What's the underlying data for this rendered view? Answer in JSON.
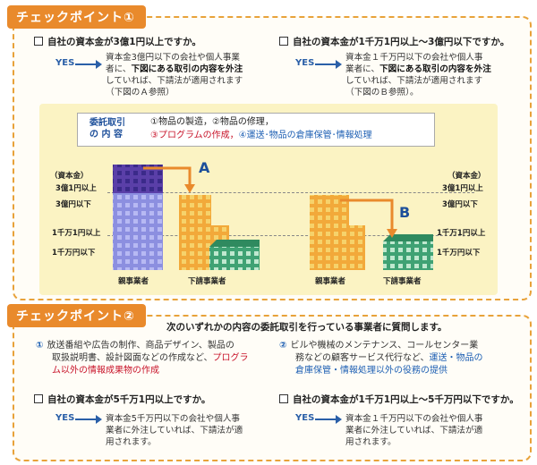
{
  "cp1": {
    "tab": "チェックポイント①",
    "left_q": "自社の資本金が3億1円以上ですか。",
    "left_yes": "YES",
    "left_a1": "資本金3億円以下の会社や個人事業",
    "left_a2": "者に、",
    "left_a2b": "下図にある取引の内容を外注",
    "left_a3": "していれば、下請法が適用されます",
    "left_a4": "（下図のＡ参照）",
    "right_q": "自社の資本金が1千万1円以上〜3億円以下ですか。",
    "right_yes": "YES",
    "right_a1": "資本金１千万円以下の会社や個人事",
    "right_a2": "業者に、",
    "right_a2b": "下図にある取引の内容を外注",
    "right_a3": "していれば、下請法が適用されます",
    "right_a4": "（下図のＢ参照）。",
    "item_label_1": "委託取引",
    "item_label_2": "の 内 容",
    "item_line1": "①物品の製造，②物品の修理，",
    "item_line2_red": "③プログラムの作成，",
    "item_line2_blue": "④運送･物品の倉庫保管･情報処理",
    "cap_left": "（資本金）",
    "lv1_left": "3億1円以上",
    "lv2_left": "3億円以下",
    "lv3_left": "1千万1円以上",
    "lv4_left": "1千万円以下",
    "cap_right": "（資本金）",
    "lv1_right": "3億1円以上",
    "lv2_right": "3億円以下",
    "lv3_right": "1千万1円以上",
    "lv4_right": "1千万円以下",
    "letter_a": "A",
    "letter_b": "B",
    "parent_left": "親事業者",
    "sub_left": "下請事業者",
    "parent_right": "親事業者",
    "sub_right": "下請事業者"
  },
  "cp2": {
    "tab": "チェックポイント②",
    "subtitle": "次のいずれかの内容の委託取引を行っている事業者に質問します。",
    "l_num": "①",
    "l1": "放送番組や広告の制作、商品デザイン、製品の",
    "l2": "取扱説明書、設計図面などの作成など、",
    "l2r": "プログラ",
    "l3r": "ム以外の情報成果物の作成",
    "r_num": "②",
    "r1": "ビルや機械のメンテナンス、コールセンター業",
    "r2": "務などの顧客サービス代行など、",
    "r2b": "運送・物品の",
    "r3b": "倉庫保管・情報処理以外の役務の提供",
    "left_q": "自社の資本金が5千万1円以上ですか。",
    "left_yes": "YES",
    "left_a1": "資本金5千万円以下の会社や個人事",
    "left_a2": "業者に外注していれば、下請法が適",
    "left_a3": "用されます。",
    "right_q": "自社の資本金が1千万1円以上〜5千万円以下ですか。",
    "right_yes": "YES",
    "right_a1": "資本金１千万円以下の会社や個人事",
    "right_a2": "業者に外注していれば、下請法が適",
    "right_a3": "用されます。"
  },
  "colors": {
    "orange": "#e98a2c",
    "purple": "#6a55b5",
    "blue_bld": "#8c8fe0",
    "amber": "#f2a93a",
    "green": "#3fa274",
    "navy": "#2a5fa8"
  }
}
